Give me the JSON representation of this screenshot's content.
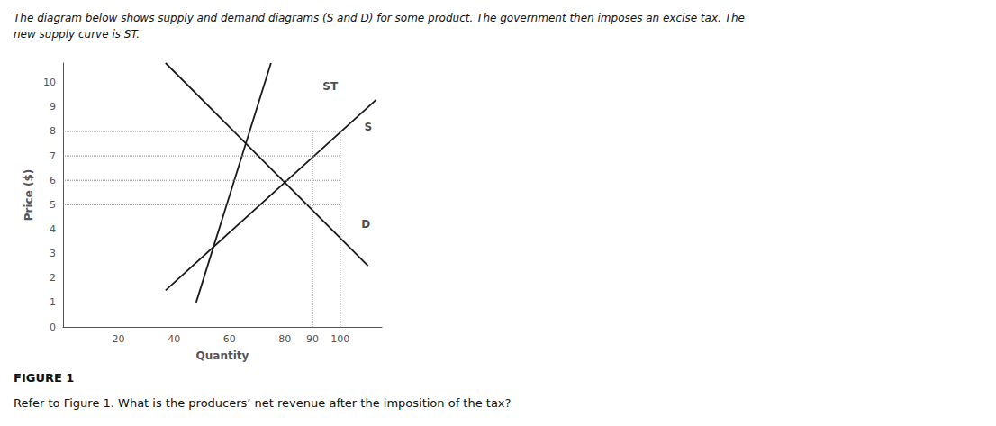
{
  "chart_data": {
    "type": "line",
    "title": "The diagram below shows supply and demand diagrams (S and D) for some product. The government then imposes an excise tax. The\nnew supply curve is ST.",
    "subtitle": "FIGURE 1",
    "note": "Refer to Figure 1. What is the producers’ net revenue after the imposition of the tax?",
    "xlabel": "Quantity",
    "ylabel": "Price ($)",
    "xlim": [
      0,
      115
    ],
    "ylim": [
      0,
      10.8
    ],
    "xticks": [
      20,
      40,
      60,
      80,
      90,
      100
    ],
    "yticks": [
      0,
      1,
      2,
      3,
      4,
      5,
      6,
      7,
      8,
      9,
      10
    ],
    "grid": false,
    "series": [
      {
        "x": [
          37,
          113
        ],
        "values": [
          1.5,
          9.3
        ],
        "color": "#1a1a1a"
      },
      {
        "x": [
          48,
          75
        ],
        "values": [
          1.0,
          10.8
        ],
        "color": "#1a1a1a"
      },
      {
        "x": [
          37,
          110
        ],
        "values": [
          10.8,
          2.5
        ],
        "color": "#1a1a1a"
      }
    ],
    "reference_lines": {
      "y": [
        5,
        6,
        7,
        8
      ],
      "x": [
        90,
        100
      ],
      "color": "#888888",
      "line_style": "dotted"
    },
    "annotations": [
      {
        "text": "ST",
        "x": 93,
        "y": 9.85
      },
      {
        "text": "S",
        "x": 108,
        "y": 8.2
      },
      {
        "text": "D",
        "x": 107,
        "y": 4.2
      }
    ]
  }
}
